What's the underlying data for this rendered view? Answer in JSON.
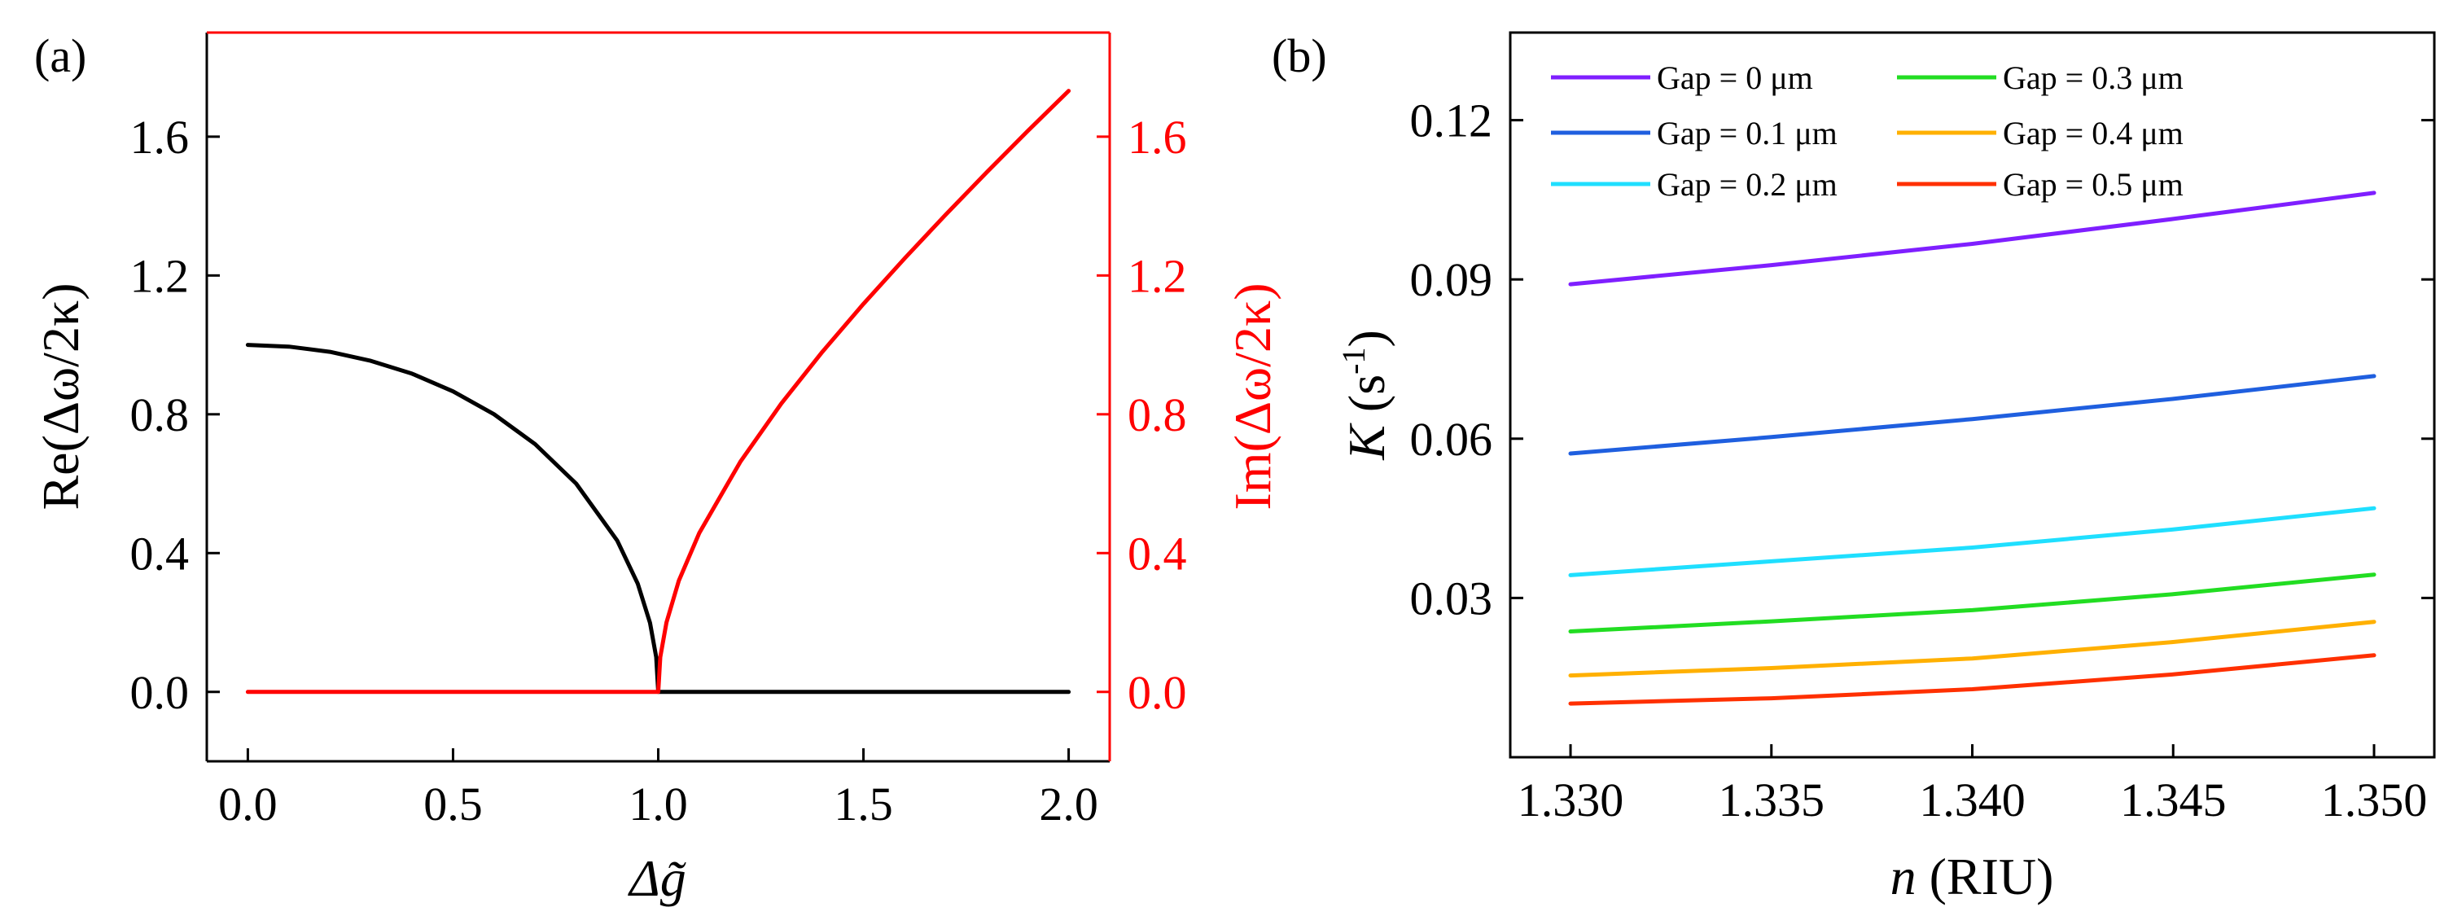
{
  "chart_data": [
    {
      "panel_label": "(a)",
      "type": "line",
      "xlabel": "Δg̃",
      "ylabel_left": "Re(Δω/2κ)",
      "ylabel_right": "Im(Δω/2κ)",
      "xlim": [
        -0.1,
        2.1
      ],
      "ylim_left": [
        -0.2,
        1.9
      ],
      "ylim_right": [
        -0.2,
        1.9
      ],
      "xticks": [
        0.0,
        0.5,
        1.0,
        1.5,
        2.0
      ],
      "xtick_labels": [
        "0.0",
        "0.5",
        "1.0",
        "1.5",
        "2.0"
      ],
      "yticks_left": [
        0.0,
        0.4,
        0.8,
        1.2,
        1.6
      ],
      "ytick_labels_left": [
        "0.0",
        "0.4",
        "0.8",
        "1.2",
        "1.6"
      ],
      "yticks_right": [
        0.0,
        0.4,
        0.8,
        1.2,
        1.6
      ],
      "ytick_labels_right": [
        "0.0",
        "0.4",
        "0.8",
        "1.2",
        "1.6"
      ],
      "series": [
        {
          "name": "Re",
          "axis": "left",
          "color": "#000000",
          "x": [
            0.0,
            0.1,
            0.2,
            0.3,
            0.4,
            0.5,
            0.6,
            0.7,
            0.8,
            0.9,
            0.95,
            0.98,
            0.995,
            1.0,
            1.2,
            1.4,
            1.6,
            1.8,
            2.0
          ],
          "y": [
            1.0,
            0.995,
            0.98,
            0.954,
            0.917,
            0.866,
            0.8,
            0.714,
            0.6,
            0.436,
            0.312,
            0.199,
            0.1,
            0.0,
            0.0,
            0.0,
            0.0,
            0.0,
            0.0
          ]
        },
        {
          "name": "Im",
          "axis": "right",
          "color": "#ff0000",
          "x": [
            0.0,
            0.2,
            0.4,
            0.6,
            0.8,
            1.0,
            1.005,
            1.02,
            1.05,
            1.1,
            1.2,
            1.3,
            1.4,
            1.5,
            1.6,
            1.7,
            1.8,
            1.9,
            2.0
          ],
          "y": [
            0.0,
            0.0,
            0.0,
            0.0,
            0.0,
            0.0,
            0.1,
            0.2,
            0.32,
            0.458,
            0.663,
            0.831,
            0.98,
            1.118,
            1.249,
            1.375,
            1.497,
            1.616,
            1.732
          ]
        }
      ]
    },
    {
      "panel_label": "(b)",
      "type": "line",
      "xlabel": "n (RIU)",
      "xlabel_italic": "n",
      "xlabel_rest": " (RIU)",
      "ylabel": "K (s-1)",
      "ylabel_italic": "K",
      "ylabel_rest": " (s",
      "ylabel_sup": "-1",
      "ylabel_close": ")",
      "xlim": [
        1.3285,
        1.3515
      ],
      "ylim": [
        0.0,
        0.1365
      ],
      "xticks": [
        1.33,
        1.335,
        1.34,
        1.345,
        1.35
      ],
      "xtick_labels": [
        "1.330",
        "1.335",
        "1.340",
        "1.345",
        "1.350"
      ],
      "yticks": [
        0.03,
        0.06,
        0.09,
        0.12
      ],
      "ytick_labels": [
        "0.03",
        "0.06",
        "0.09",
        "0.12"
      ],
      "legend_position": "top-left",
      "series": [
        {
          "name": "Gap = 0 μm",
          "color": "#7f1fff",
          "x": [
            1.33,
            1.335,
            1.34,
            1.345,
            1.35
          ],
          "values": [
            0.0891,
            0.0927,
            0.0967,
            0.1014,
            0.1063
          ]
        },
        {
          "name": "Gap = 0.1 μm",
          "color": "#1f5fdf",
          "x": [
            1.33,
            1.335,
            1.34,
            1.345,
            1.35
          ],
          "values": [
            0.0572,
            0.0603,
            0.0637,
            0.0675,
            0.0718
          ]
        },
        {
          "name": "Gap = 0.2 μm",
          "color": "#1fdfff",
          "x": [
            1.33,
            1.335,
            1.34,
            1.345,
            1.35
          ],
          "values": [
            0.0343,
            0.0369,
            0.0395,
            0.0429,
            0.0469
          ]
        },
        {
          "name": "Gap = 0.3 μm",
          "color": "#22dd22",
          "x": [
            1.33,
            1.335,
            1.34,
            1.345,
            1.35
          ],
          "values": [
            0.0237,
            0.0256,
            0.0277,
            0.0307,
            0.0344
          ]
        },
        {
          "name": "Gap = 0.4 μm",
          "color": "#ffb000",
          "x": [
            1.33,
            1.335,
            1.34,
            1.345,
            1.35
          ],
          "values": [
            0.0154,
            0.0168,
            0.0186,
            0.0217,
            0.0255
          ]
        },
        {
          "name": "Gap = 0.5 μm",
          "color": "#ff3000",
          "x": [
            1.33,
            1.335,
            1.34,
            1.345,
            1.35
          ],
          "values": [
            0.0101,
            0.0111,
            0.0128,
            0.0156,
            0.0192
          ]
        }
      ]
    }
  ]
}
